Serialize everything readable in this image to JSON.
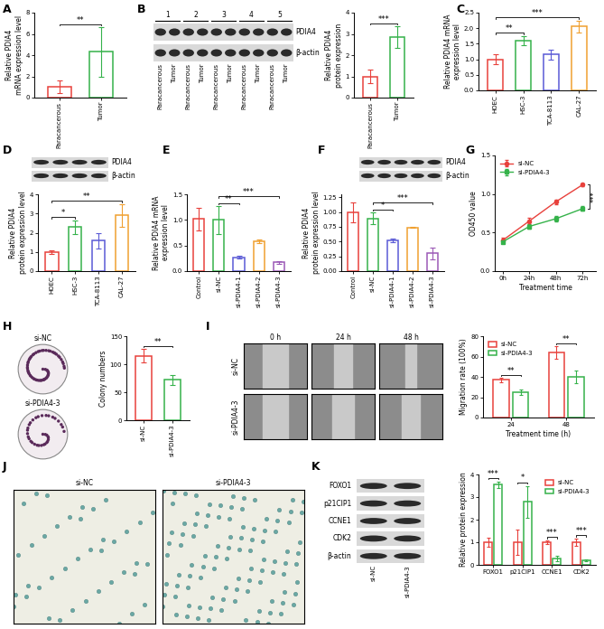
{
  "chart_data": [
    {
      "panel": "A",
      "type": "bar",
      "categories": [
        "Paracancerous",
        "Tumor"
      ],
      "values": [
        1.0,
        4.3
      ],
      "errors": [
        0.6,
        2.3
      ],
      "colors": [
        "#e8413c",
        "#35b24a"
      ],
      "ylabel": "Relative PDIA4\nmRNA expression level",
      "ylim": [
        0,
        8
      ],
      "yticks": [
        0,
        2,
        4,
        6,
        8
      ],
      "significance": [
        {
          "from": "Paracancerous",
          "to": "Tumor",
          "label": "**"
        }
      ]
    },
    {
      "type": "bar",
      "categories": [
        "Paracancerous",
        "Tumor"
      ],
      "values": [
        1.0,
        2.85
      ],
      "errors": [
        0.3,
        0.5
      ],
      "colors": [
        "#e8413c",
        "#35b24a"
      ],
      "ylabel": "Relative PDIA4\nprotein expression",
      "ylim": [
        0,
        4
      ],
      "yticks": [
        0,
        1,
        2,
        3,
        4
      ],
      "significance": [
        {
          "from": "Paracancerous",
          "to": "Tumor",
          "label": "***"
        }
      ]
    },
    {
      "panel": "C",
      "type": "bar",
      "categories": [
        "HOEC",
        "HSC-3",
        "TCA-8113",
        "CAL-27"
      ],
      "values": [
        1.0,
        1.6,
        1.15,
        2.05
      ],
      "errors": [
        0.15,
        0.15,
        0.15,
        0.2
      ],
      "colors": [
        "#e8413c",
        "#35b24a",
        "#5a5ad6",
        "#f0a030"
      ],
      "ylabel": "Relative PDIA4 mRNA\nexpression level",
      "ylim": [
        0,
        2.5
      ],
      "yticks": [
        {
          "value": 0,
          "label": "0.0"
        },
        {
          "value": 0.5,
          "label": "0.5"
        },
        {
          "value": 1,
          "label": "1.0"
        },
        {
          "value": 1.5,
          "label": "1.5"
        },
        {
          "value": 2,
          "label": "2.0"
        },
        {
          "value": 2.5,
          "label": "2.5"
        }
      ],
      "significance": [
        {
          "from": "HOEC",
          "to": "HSC-3",
          "label": "**"
        },
        {
          "from": "HOEC",
          "to": "CAL-27",
          "label": "***"
        }
      ]
    },
    {
      "type": "bar",
      "categories": [
        "HOEC",
        "HSC-3",
        "TCA-8113",
        "CAL-27"
      ],
      "values": [
        1.0,
        2.3,
        1.6,
        2.9
      ],
      "errors": [
        0.1,
        0.35,
        0.4,
        0.6
      ],
      "colors": [
        "#e8413c",
        "#35b24a",
        "#5a5ad6",
        "#f0a030"
      ],
      "ylabel": "Relative PDIA4\nprotein expression level",
      "ylim": [
        0,
        4
      ],
      "yticks": [
        0,
        1,
        2,
        3,
        4
      ],
      "significance": [
        {
          "from": "HOEC",
          "to": "HSC-3",
          "label": "*"
        },
        {
          "from": "HOEC",
          "to": "CAL-27",
          "label": "**"
        }
      ]
    },
    {
      "panel": "E",
      "type": "bar",
      "categories": [
        "Control",
        "si-NC",
        "si-PDIA4-1",
        "si-PDIA4-2",
        "si-PDIA4-3"
      ],
      "values": [
        1.02,
        1.0,
        0.27,
        0.58,
        0.17
      ],
      "errors": [
        0.22,
        0.27,
        0.03,
        0.03,
        0.03
      ],
      "colors": [
        "#e8413c",
        "#35b24a",
        "#5a5ad6",
        "#f0a030",
        "#9b59b6"
      ],
      "ylabel": "Relative PDIA4 mRNA\nexpression level",
      "ylim": [
        0,
        1.5
      ],
      "yticks": [
        {
          "value": 0,
          "label": "0.0"
        },
        {
          "value": 0.5,
          "label": "0.5"
        },
        {
          "value": 1,
          "label": "1.0"
        },
        {
          "value": 1.5,
          "label": "1.5"
        }
      ],
      "significance": [
        {
          "from": "si-NC",
          "to": "si-PDIA4-1",
          "label": "**"
        },
        {
          "from": "si-NC",
          "to": "si-PDIA4-3",
          "label": "***"
        }
      ]
    },
    {
      "type": "bar",
      "categories": [
        "Control",
        "si-NC",
        "si-PDIA4-1",
        "si-PDIA4-2",
        "si-PDIA4-3"
      ],
      "values": [
        1.0,
        0.89,
        0.52,
        0.74,
        0.3
      ],
      "errors": [
        0.17,
        0.1,
        0.03,
        0.01,
        0.1
      ],
      "colors": [
        "#e8413c",
        "#35b24a",
        "#5a5ad6",
        "#f0a030",
        "#9b59b6"
      ],
      "ylabel": "Relative PDIA4\nprotein expression level",
      "ylim": [
        0,
        1.3
      ],
      "yticks": [
        {
          "value": 0,
          "label": "0.00"
        },
        {
          "value": 0.25,
          "label": "0.25"
        },
        {
          "value": 0.5,
          "label": "0.50"
        },
        {
          "value": 0.75,
          "label": "0.75"
        },
        {
          "value": 1,
          "label": "1.00"
        },
        {
          "value": 1.25,
          "label": "1.25"
        }
      ],
      "significance": [
        {
          "from": "si-NC",
          "to": "si-PDIA4-1",
          "label": "*"
        },
        {
          "from": "si-NC",
          "to": "si-PDIA4-3",
          "label": "***"
        }
      ]
    },
    {
      "panel": "G",
      "type": "line",
      "categories": [
        "0h",
        "24h",
        "48h",
        "72h"
      ],
      "series": [
        {
          "name": "si-NC",
          "color": "#e8413c",
          "marker": "o",
          "values": [
            0.4,
            0.65,
            0.9,
            1.12
          ],
          "errors": [
            0.03,
            0.04,
            0.03,
            0.02
          ]
        },
        {
          "name": "si-PDIA4-3",
          "color": "#35b24a",
          "marker": "s",
          "values": [
            0.38,
            0.58,
            0.68,
            0.81
          ],
          "errors": [
            0.02,
            0.03,
            0.04,
            0.03
          ]
        }
      ],
      "xlabel": "Treatment time",
      "ylabel": "OD450 value",
      "ylim": [
        0,
        1.5
      ],
      "yticks": [
        {
          "value": 0,
          "label": "0.0"
        },
        {
          "value": 0.5,
          "label": "0.5"
        },
        {
          "value": 1,
          "label": "1.0"
        },
        {
          "value": 1.5,
          "label": "1.5"
        }
      ],
      "legend": "upper left",
      "significance": [
        {
          "category": "72h",
          "label": "***"
        }
      ]
    },
    {
      "type": "bar",
      "categories": [
        "si-NC",
        "si-PDIA4-3"
      ],
      "values": [
        115,
        72
      ],
      "errors": [
        12,
        9
      ],
      "colors": [
        "#e8413c",
        "#35b24a"
      ],
      "ylabel": "Colony numbers",
      "ylim": [
        0,
        150
      ],
      "yticks": [
        0,
        50,
        100,
        150
      ],
      "significance": [
        {
          "from": "si-NC",
          "to": "si-PDIA4-3",
          "label": "**"
        }
      ]
    },
    {
      "type": "bar",
      "categories": [
        "24",
        "48"
      ],
      "series": [
        {
          "name": "si-NC",
          "color": "#e8413c",
          "values": [
            37,
            64
          ],
          "errors": [
            2,
            6
          ]
        },
        {
          "name": "si-PDIA4-3",
          "color": "#35b24a",
          "values": [
            25,
            40
          ],
          "errors": [
            3,
            6
          ]
        }
      ],
      "xlabel": "Treatment time (h)",
      "ylabel": "Migration rate (100%)",
      "ylim": [
        0,
        80
      ],
      "yticks": [
        0,
        20,
        40,
        60,
        80
      ],
      "legend": "upper left",
      "significance": [
        {
          "category": "24",
          "label": "**"
        },
        {
          "category": "48",
          "label": "**"
        }
      ]
    },
    {
      "type": "bar",
      "categories": [
        "FOXO1",
        "p21CIP1",
        "CCNE1",
        "CDK2"
      ],
      "series": [
        {
          "name": "si-NC",
          "color": "#e8413c",
          "values": [
            1.0,
            1.0,
            1.0,
            1.0
          ],
          "errors": [
            0.2,
            0.55,
            0.08,
            0.15
          ]
        },
        {
          "name": "si-PDIA4-3",
          "color": "#35b24a",
          "values": [
            3.55,
            2.8,
            0.28,
            0.2
          ],
          "errors": [
            0.15,
            0.7,
            0.12,
            0.03
          ]
        }
      ],
      "ylabel": "Relative protein expression",
      "ylim": [
        0,
        4
      ],
      "yticks": [
        0,
        1,
        2,
        3,
        4
      ],
      "legend": "upper right",
      "significance": [
        {
          "category": "FOXO1",
          "label": "***"
        },
        {
          "category": "p21CIP1",
          "label": "*"
        },
        {
          "category": "CCNE1",
          "label": "***"
        },
        {
          "category": "CDK2",
          "label": "***"
        }
      ]
    }
  ],
  "blots": [
    {
      "panel": "B",
      "groups": [
        "1",
        "2",
        "3",
        "4",
        "5"
      ],
      "rows": [
        "PDIA4",
        "β-actin"
      ],
      "lane_labels": [
        "Paracancerous",
        "Tumor",
        "Paracancerous",
        "Tumor",
        "Paracancerous",
        "Tumor",
        "Paracancerous",
        "Tumor",
        "Paracancerous",
        "Tumor"
      ]
    },
    {
      "panel": "D",
      "rows": [
        "PDIA4",
        "β-actin"
      ],
      "lanes": 4
    },
    {
      "panel": "F",
      "rows": [
        "PDIA4",
        "β-actin"
      ],
      "lanes": 5
    },
    {
      "panel": "K",
      "rows": [
        "FOXO1",
        "p21CIP1",
        "CCNE1",
        "CDK2",
        "β-actin"
      ],
      "lane_labels": [
        "si-NC",
        "si-PDIA4-3"
      ]
    }
  ],
  "images": [
    {
      "panel": "H",
      "labels": [
        "si-NC",
        "si-PDIA4-3"
      ]
    },
    {
      "panel": "I",
      "columns": [
        "0 h",
        "24 h",
        "48 h"
      ],
      "rows": [
        "si-NC",
        "si-PDIA4-3"
      ]
    },
    {
      "panel": "J",
      "labels": [
        "si-NC",
        "si-PDIA4-3"
      ]
    }
  ]
}
